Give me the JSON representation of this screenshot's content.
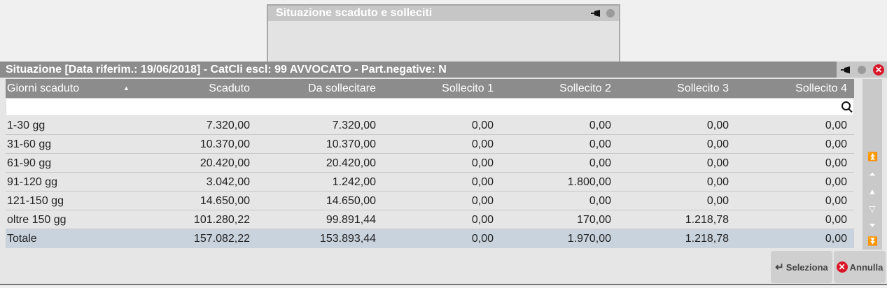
{
  "back_window": {
    "title": "Situazione scaduto e solleciti"
  },
  "main_window": {
    "title": "Situazione [Data riferim.: 19/06/2018] - CatCli escl: 99 AVVOCATO - Part.negative: N"
  },
  "table": {
    "columns": [
      "Giorni scaduto",
      "Scaduto",
      "Da sollecitare",
      "Sollecito 1",
      "Sollecito 2",
      "Sollecito 3",
      "Sollecito 4"
    ],
    "sort_indicator": "▲",
    "rows": [
      [
        "1-30 gg",
        "7.320,00",
        "7.320,00",
        "0,00",
        "0,00",
        "0,00",
        "0,00"
      ],
      [
        "31-60 gg",
        "10.370,00",
        "10.370,00",
        "0,00",
        "0,00",
        "0,00",
        "0,00"
      ],
      [
        "61-90 gg",
        "20.420,00",
        "20.420,00",
        "0,00",
        "0,00",
        "0,00",
        "0,00"
      ],
      [
        "91-120 gg",
        "3.042,00",
        "1.242,00",
        "0,00",
        "1.800,00",
        "0,00",
        "0,00"
      ],
      [
        "121-150 gg",
        "14.650,00",
        "14.650,00",
        "0,00",
        "0,00",
        "0,00",
        "0,00"
      ],
      [
        "oltre 150 gg",
        "101.280,22",
        "99.891,44",
        "0,00",
        "170,00",
        "1.218,78",
        "0,00"
      ]
    ],
    "total": [
      "Totale",
      "157.082,22",
      "153.893,44",
      "0,00",
      "1.970,00",
      "1.218,78",
      "0,00"
    ]
  },
  "buttons": {
    "select": "Seleziona",
    "cancel": "Annulla"
  },
  "colors": {
    "titlebar": "#8c8c8c",
    "total_row": "#c9d3de",
    "close": "#d8182a"
  }
}
